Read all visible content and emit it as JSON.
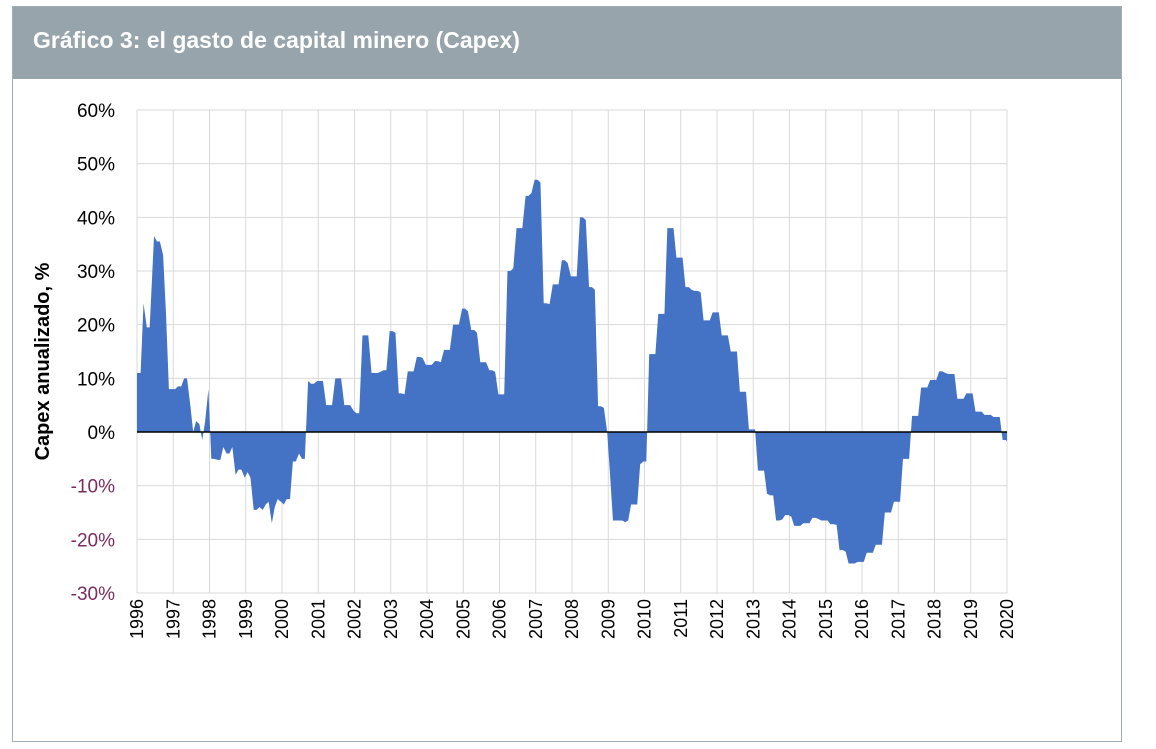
{
  "title": "Gráfico 3: el gasto de capital minero (Capex)",
  "chart_data": {
    "type": "area",
    "title": "Gráfico 3: el gasto de capital minero (Capex)",
    "xlabel": "",
    "ylabel": "Capex anualizado, %",
    "ylim": [
      -30,
      60
    ],
    "xlim": [
      1996,
      2020
    ],
    "grid": true,
    "legend": "none",
    "y_ticks": [
      {
        "value": 60,
        "label": "60%"
      },
      {
        "value": 50,
        "label": "50%"
      },
      {
        "value": 40,
        "label": "40%"
      },
      {
        "value": 30,
        "label": "30%"
      },
      {
        "value": 20,
        "label": "20%"
      },
      {
        "value": 10,
        "label": "10%"
      },
      {
        "value": 0,
        "label": "0%"
      },
      {
        "value": -10,
        "label": "-10%"
      },
      {
        "value": -20,
        "label": "-20%"
      },
      {
        "value": -30,
        "label": "-30%"
      }
    ],
    "x_ticks": [
      "1996",
      "1997",
      "1998",
      "1999",
      "2000",
      "2001",
      "2002",
      "2003",
      "2004",
      "2005",
      "2006",
      "2007",
      "2008",
      "2009",
      "2010",
      "2011",
      "2012",
      "2013",
      "2014",
      "2015",
      "2016",
      "2017",
      "2018",
      "2019",
      "2020"
    ],
    "colors": {
      "area": "#4472c4",
      "negative_tick": "#7b2c5c",
      "grid": "#d9d9d9"
    },
    "series": [
      {
        "name": "Capex",
        "points": [
          [
            1996.0,
            11
          ],
          [
            1996.1,
            11
          ],
          [
            1996.18,
            24
          ],
          [
            1996.27,
            19.5
          ],
          [
            1996.35,
            19.5
          ],
          [
            1996.47,
            36.5
          ],
          [
            1996.55,
            35.5
          ],
          [
            1996.63,
            35.5
          ],
          [
            1996.72,
            33
          ],
          [
            1996.8,
            22
          ],
          [
            1996.88,
            8
          ],
          [
            1996.97,
            8
          ],
          [
            1997.05,
            8
          ],
          [
            1997.13,
            8.5
          ],
          [
            1997.22,
            8.5
          ],
          [
            1997.3,
            10
          ],
          [
            1997.38,
            10
          ],
          [
            1997.47,
            5
          ],
          [
            1997.55,
            0
          ],
          [
            1997.63,
            2
          ],
          [
            1997.72,
            1.5
          ],
          [
            1997.8,
            -1.5
          ],
          [
            1997.88,
            2
          ],
          [
            1997.97,
            8
          ],
          [
            1998.05,
            -5
          ],
          [
            1998.13,
            -5
          ],
          [
            1998.22,
            -5.2
          ],
          [
            1998.3,
            -5.2
          ],
          [
            1998.38,
            -2.8
          ],
          [
            1998.47,
            -4
          ],
          [
            1998.55,
            -4
          ],
          [
            1998.63,
            -2.8
          ],
          [
            1998.72,
            -8
          ],
          [
            1998.8,
            -7
          ],
          [
            1998.88,
            -7
          ],
          [
            1998.97,
            -8.5
          ],
          [
            1999.05,
            -7.5
          ],
          [
            1999.13,
            -8.5
          ],
          [
            1999.22,
            -14.5
          ],
          [
            1999.3,
            -14.5
          ],
          [
            1999.38,
            -14
          ],
          [
            1999.47,
            -14.5
          ],
          [
            1999.55,
            -13.5
          ],
          [
            1999.63,
            -13
          ],
          [
            1999.72,
            -17
          ],
          [
            1999.8,
            -14
          ],
          [
            1999.88,
            -12.5
          ],
          [
            1999.97,
            -13
          ],
          [
            2000.05,
            -13.5
          ],
          [
            2000.13,
            -12.5
          ],
          [
            2000.22,
            -12.5
          ],
          [
            2000.3,
            -5.5
          ],
          [
            2000.38,
            -5.5
          ],
          [
            2000.47,
            -4
          ],
          [
            2000.55,
            -5
          ],
          [
            2000.63,
            -5
          ],
          [
            2000.72,
            9.5
          ],
          [
            2000.8,
            9
          ],
          [
            2000.88,
            9
          ],
          [
            2000.97,
            9.5
          ],
          [
            2001.05,
            9.5
          ],
          [
            2001.13,
            9.5
          ],
          [
            2001.22,
            5
          ],
          [
            2001.3,
            5
          ],
          [
            2001.38,
            5
          ],
          [
            2001.47,
            10
          ],
          [
            2001.55,
            10
          ],
          [
            2001.63,
            10
          ],
          [
            2001.72,
            5
          ],
          [
            2001.8,
            5
          ],
          [
            2001.88,
            5
          ],
          [
            2001.97,
            4
          ],
          [
            2002.05,
            3.5
          ],
          [
            2002.13,
            3.5
          ],
          [
            2002.22,
            18
          ],
          [
            2002.3,
            18
          ],
          [
            2002.38,
            18
          ],
          [
            2002.47,
            11
          ],
          [
            2002.55,
            11
          ],
          [
            2002.63,
            11
          ],
          [
            2002.72,
            11.2
          ],
          [
            2002.8,
            11.5
          ],
          [
            2002.88,
            11.5
          ],
          [
            2002.97,
            18.8
          ],
          [
            2003.05,
            18.8
          ],
          [
            2003.13,
            18.5
          ],
          [
            2003.22,
            7.2
          ],
          [
            2003.3,
            7.2
          ],
          [
            2003.38,
            7
          ],
          [
            2003.47,
            11.3
          ],
          [
            2003.55,
            11.3
          ],
          [
            2003.63,
            11.3
          ],
          [
            2003.72,
            14
          ],
          [
            2003.8,
            14
          ],
          [
            2003.88,
            13.8
          ],
          [
            2003.97,
            12.5
          ],
          [
            2004.05,
            12.5
          ],
          [
            2004.13,
            12.5
          ],
          [
            2004.22,
            13.2
          ],
          [
            2004.3,
            13.2
          ],
          [
            2004.38,
            13
          ],
          [
            2004.47,
            15.3
          ],
          [
            2004.55,
            15.3
          ],
          [
            2004.63,
            15.3
          ],
          [
            2004.72,
            20
          ],
          [
            2004.8,
            20
          ],
          [
            2004.88,
            20
          ],
          [
            2004.97,
            23
          ],
          [
            2005.05,
            23
          ],
          [
            2005.13,
            22.5
          ],
          [
            2005.22,
            19
          ],
          [
            2005.3,
            19
          ],
          [
            2005.38,
            18.5
          ],
          [
            2005.47,
            13
          ],
          [
            2005.55,
            13
          ],
          [
            2005.63,
            13
          ],
          [
            2005.72,
            11.5
          ],
          [
            2005.8,
            11.5
          ],
          [
            2005.88,
            11.2
          ],
          [
            2005.97,
            7
          ],
          [
            2006.05,
            7
          ],
          [
            2006.13,
            7
          ],
          [
            2006.22,
            30
          ],
          [
            2006.3,
            30
          ],
          [
            2006.38,
            30.5
          ],
          [
            2006.47,
            38
          ],
          [
            2006.55,
            38
          ],
          [
            2006.63,
            38
          ],
          [
            2006.72,
            44
          ],
          [
            2006.8,
            44
          ],
          [
            2006.88,
            44.5
          ],
          [
            2006.97,
            47
          ],
          [
            2007.05,
            47
          ],
          [
            2007.13,
            46.5
          ],
          [
            2007.22,
            24
          ],
          [
            2007.3,
            24
          ],
          [
            2007.38,
            23.8
          ],
          [
            2007.47,
            27.5
          ],
          [
            2007.55,
            27.5
          ],
          [
            2007.63,
            27.5
          ],
          [
            2007.72,
            32
          ],
          [
            2007.8,
            32
          ],
          [
            2007.88,
            31.5
          ],
          [
            2007.97,
            29
          ],
          [
            2008.05,
            29
          ],
          [
            2008.13,
            29
          ],
          [
            2008.22,
            40
          ],
          [
            2008.3,
            40
          ],
          [
            2008.38,
            39.5
          ],
          [
            2008.47,
            27
          ],
          [
            2008.55,
            27
          ],
          [
            2008.63,
            26.5
          ],
          [
            2008.72,
            4.8
          ],
          [
            2008.8,
            4.8
          ],
          [
            2008.88,
            4.5
          ],
          [
            2008.97,
            0
          ],
          [
            2009.05,
            -8
          ],
          [
            2009.13,
            -16.5
          ],
          [
            2009.22,
            -16.5
          ],
          [
            2009.3,
            -16.5
          ],
          [
            2009.38,
            -16.5
          ],
          [
            2009.47,
            -16.8
          ],
          [
            2009.55,
            -16.5
          ],
          [
            2009.63,
            -13.5
          ],
          [
            2009.72,
            -13.5
          ],
          [
            2009.8,
            -13.5
          ],
          [
            2009.88,
            -6
          ],
          [
            2009.97,
            -5.5
          ],
          [
            2010.05,
            -5.5
          ],
          [
            2010.13,
            14.5
          ],
          [
            2010.22,
            14.5
          ],
          [
            2010.3,
            14.5
          ],
          [
            2010.38,
            22
          ],
          [
            2010.47,
            22
          ],
          [
            2010.55,
            22
          ],
          [
            2010.63,
            38
          ],
          [
            2010.72,
            38
          ],
          [
            2010.8,
            38
          ],
          [
            2010.88,
            32.5
          ],
          [
            2010.97,
            32.5
          ],
          [
            2011.05,
            32.5
          ],
          [
            2011.13,
            27
          ],
          [
            2011.22,
            27
          ],
          [
            2011.3,
            26.5
          ],
          [
            2011.38,
            26.3
          ],
          [
            2011.47,
            26.3
          ],
          [
            2011.55,
            26
          ],
          [
            2011.63,
            20.8
          ],
          [
            2011.72,
            20.8
          ],
          [
            2011.8,
            20.8
          ],
          [
            2011.88,
            22.3
          ],
          [
            2011.97,
            22.3
          ],
          [
            2012.05,
            22.3
          ],
          [
            2012.13,
            18
          ],
          [
            2012.22,
            18
          ],
          [
            2012.3,
            18
          ],
          [
            2012.38,
            15
          ],
          [
            2012.47,
            15
          ],
          [
            2012.55,
            15
          ],
          [
            2012.63,
            7.5
          ],
          [
            2012.72,
            7.5
          ],
          [
            2012.8,
            7.5
          ],
          [
            2012.88,
            0.5
          ],
          [
            2012.97,
            0.5
          ],
          [
            2013.05,
            0.5
          ],
          [
            2013.13,
            -7.2
          ],
          [
            2013.22,
            -7.2
          ],
          [
            2013.3,
            -7.2
          ],
          [
            2013.38,
            -11.5
          ],
          [
            2013.47,
            -11.8
          ],
          [
            2013.55,
            -11.8
          ],
          [
            2013.63,
            -16.5
          ],
          [
            2013.72,
            -16.5
          ],
          [
            2013.8,
            -16.3
          ],
          [
            2013.88,
            -15.5
          ],
          [
            2013.97,
            -15.5
          ],
          [
            2014.05,
            -15.8
          ],
          [
            2014.13,
            -17.5
          ],
          [
            2014.22,
            -17.5
          ],
          [
            2014.3,
            -17.5
          ],
          [
            2014.38,
            -17
          ],
          [
            2014.47,
            -17
          ],
          [
            2014.55,
            -17
          ],
          [
            2014.63,
            -16
          ],
          [
            2014.72,
            -16
          ],
          [
            2014.8,
            -16.2
          ],
          [
            2014.88,
            -16.5
          ],
          [
            2014.97,
            -16.5
          ],
          [
            2015.05,
            -16.5
          ],
          [
            2015.13,
            -17.2
          ],
          [
            2015.22,
            -17.2
          ],
          [
            2015.3,
            -17.3
          ],
          [
            2015.38,
            -22
          ],
          [
            2015.47,
            -22
          ],
          [
            2015.55,
            -22.3
          ],
          [
            2015.63,
            -24.5
          ],
          [
            2015.72,
            -24.5
          ],
          [
            2015.8,
            -24.5
          ],
          [
            2015.88,
            -24.2
          ],
          [
            2015.97,
            -24.2
          ],
          [
            2016.05,
            -24.2
          ],
          [
            2016.13,
            -22.5
          ],
          [
            2016.22,
            -22.5
          ],
          [
            2016.3,
            -22.5
          ],
          [
            2016.38,
            -21
          ],
          [
            2016.47,
            -21
          ],
          [
            2016.55,
            -21
          ],
          [
            2016.63,
            -15
          ],
          [
            2016.72,
            -15
          ],
          [
            2016.8,
            -15
          ],
          [
            2016.88,
            -13
          ],
          [
            2016.97,
            -13
          ],
          [
            2017.05,
            -13
          ],
          [
            2017.13,
            -5
          ],
          [
            2017.22,
            -5
          ],
          [
            2017.3,
            -5
          ],
          [
            2017.38,
            3
          ],
          [
            2017.47,
            3
          ],
          [
            2017.55,
            3
          ],
          [
            2017.63,
            8.3
          ],
          [
            2017.72,
            8.3
          ],
          [
            2017.8,
            8.3
          ],
          [
            2017.88,
            9.7
          ],
          [
            2017.97,
            9.7
          ],
          [
            2018.05,
            9.7
          ],
          [
            2018.13,
            11.3
          ],
          [
            2018.22,
            11.3
          ],
          [
            2018.3,
            11
          ],
          [
            2018.38,
            10.8
          ],
          [
            2018.47,
            10.8
          ],
          [
            2018.55,
            10.8
          ],
          [
            2018.63,
            6.2
          ],
          [
            2018.72,
            6.2
          ],
          [
            2018.8,
            6.2
          ],
          [
            2018.88,
            7.2
          ],
          [
            2018.97,
            7.2
          ],
          [
            2019.05,
            7.2
          ],
          [
            2019.13,
            3.8
          ],
          [
            2019.22,
            3.8
          ],
          [
            2019.3,
            3.8
          ],
          [
            2019.38,
            3.2
          ],
          [
            2019.47,
            3.2
          ],
          [
            2019.55,
            3.2
          ],
          [
            2019.63,
            2.8
          ],
          [
            2019.72,
            2.8
          ],
          [
            2019.8,
            2.8
          ],
          [
            2019.88,
            -1.5
          ],
          [
            2019.97,
            -1.5
          ],
          [
            2020.0,
            -1.8
          ]
        ]
      }
    ]
  }
}
